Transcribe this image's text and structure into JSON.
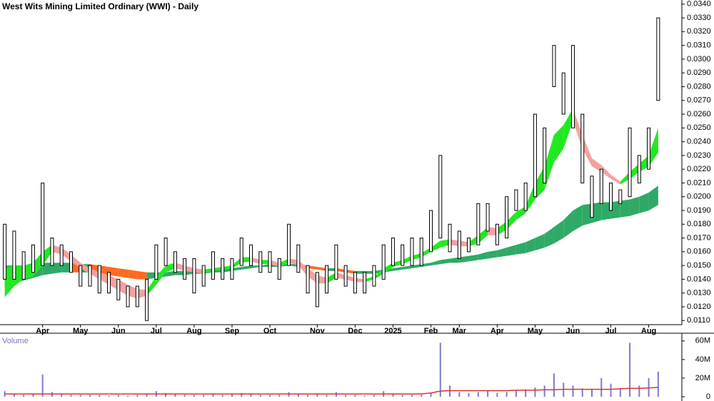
{
  "chart_data": {
    "type": "ohlc",
    "title": "West Wits Mining Limited Ordinary (WWI) - Daily",
    "categories": [
      null,
      null,
      null,
      null,
      "Apr",
      null,
      null,
      null,
      "May",
      null,
      null,
      null,
      "Jun",
      null,
      null,
      null,
      "Jul",
      null,
      null,
      null,
      "Aug",
      null,
      null,
      null,
      "Sep",
      null,
      null,
      null,
      "Oct",
      null,
      null,
      null,
      null,
      "Nov",
      null,
      null,
      null,
      "Dec",
      null,
      null,
      null,
      "2025",
      null,
      null,
      null,
      "Feb",
      null,
      null,
      "Mar",
      null,
      null,
      null,
      "Apr",
      null,
      null,
      null,
      "May",
      null,
      null,
      null,
      "Jun",
      null,
      null,
      null,
      "Jul",
      null,
      null,
      null,
      "Aug",
      null
    ],
    "high": [
      0.018,
      0.0175,
      0.016,
      0.0165,
      0.021,
      0.017,
      0.0165,
      0.016,
      0.015,
      0.015,
      0.015,
      0.0145,
      0.014,
      0.0135,
      0.0135,
      0.014,
      0.0165,
      0.017,
      0.016,
      0.0155,
      0.0155,
      0.015,
      0.016,
      0.0155,
      0.0155,
      0.017,
      0.0165,
      0.016,
      0.016,
      0.0155,
      0.018,
      0.0165,
      0.015,
      0.0145,
      0.015,
      0.0165,
      0.015,
      0.0145,
      0.0145,
      0.015,
      0.0165,
      0.017,
      0.0165,
      0.017,
      0.017,
      0.019,
      0.023,
      0.018,
      0.0175,
      0.017,
      0.0195,
      0.0195,
      0.018,
      0.02,
      0.0205,
      0.021,
      0.026,
      0.025,
      0.031,
      0.029,
      0.031,
      0.026,
      0.0215,
      0.022,
      0.021,
      0.0205,
      0.025,
      0.023,
      0.025,
      0.033
    ],
    "low": [
      0.014,
      0.014,
      0.014,
      0.0145,
      0.015,
      0.015,
      0.015,
      0.0145,
      0.0135,
      0.0135,
      0.013,
      0.013,
      0.0125,
      0.012,
      0.012,
      0.011,
      0.014,
      0.015,
      0.0145,
      0.014,
      0.013,
      0.0135,
      0.014,
      0.014,
      0.014,
      0.015,
      0.015,
      0.0145,
      0.0145,
      0.014,
      0.015,
      0.0145,
      0.013,
      0.012,
      0.013,
      0.014,
      0.0135,
      0.013,
      0.013,
      0.0135,
      0.014,
      0.015,
      0.015,
      0.015,
      0.015,
      0.016,
      0.017,
      0.016,
      0.0155,
      0.016,
      0.0165,
      0.0175,
      0.0165,
      0.017,
      0.019,
      0.019,
      0.02,
      0.021,
      0.028,
      0.026,
      0.025,
      0.021,
      0.0185,
      0.0195,
      0.019,
      0.0195,
      0.02,
      0.021,
      0.022,
      0.027
    ],
    "short_band": {
      "rising_color": "#22e822",
      "falling_color": "#f4a0a0",
      "upper": [
        0.0148,
        0.015,
        0.015,
        0.0152,
        0.016,
        0.0165,
        0.0163,
        0.0158,
        0.0152,
        0.0148,
        0.0145,
        0.0143,
        0.014,
        0.0136,
        0.0133,
        0.0132,
        0.0142,
        0.015,
        0.0152,
        0.015,
        0.0148,
        0.0147,
        0.0148,
        0.0149,
        0.015,
        0.0156,
        0.0156,
        0.0154,
        0.0154,
        0.0152,
        0.0155,
        0.0154,
        0.0148,
        0.0143,
        0.0141,
        0.0145,
        0.0143,
        0.0141,
        0.014,
        0.0142,
        0.0148,
        0.0152,
        0.0154,
        0.0157,
        0.0159,
        0.0163,
        0.0168,
        0.0169,
        0.0168,
        0.0167,
        0.0172,
        0.0178,
        0.0177,
        0.0182,
        0.0189,
        0.0193,
        0.021,
        0.0222,
        0.0245,
        0.0252,
        0.0264,
        0.0245,
        0.0228,
        0.0223,
        0.0216,
        0.0211,
        0.0218,
        0.0224,
        0.023,
        0.025
      ],
      "lower": [
        0.0127,
        0.0135,
        0.014,
        0.0142,
        0.015,
        0.016,
        0.0158,
        0.0153,
        0.0148,
        0.0144,
        0.014,
        0.0136,
        0.0132,
        0.0128,
        0.0126,
        0.0128,
        0.0136,
        0.0145,
        0.0148,
        0.0146,
        0.0145,
        0.0144,
        0.0146,
        0.0147,
        0.0148,
        0.0152,
        0.0153,
        0.0151,
        0.0151,
        0.0149,
        0.0152,
        0.015,
        0.0142,
        0.0137,
        0.0137,
        0.0141,
        0.014,
        0.0138,
        0.0138,
        0.014,
        0.0144,
        0.0149,
        0.0151,
        0.0154,
        0.0156,
        0.016,
        0.0163,
        0.0165,
        0.0164,
        0.0164,
        0.0166,
        0.0172,
        0.0172,
        0.0176,
        0.0183,
        0.0188,
        0.0198,
        0.0205,
        0.0225,
        0.0235,
        0.0255,
        0.0235,
        0.0222,
        0.0218,
        0.0213,
        0.0209,
        0.0213,
        0.0218,
        0.0222,
        0.0232
      ]
    },
    "long_band": {
      "rising_color": "#2eaa66",
      "falling_color": "#ff6a22",
      "upper": [
        0.015,
        0.015,
        0.015,
        0.0151,
        0.0152,
        0.0152,
        0.0152,
        0.0152,
        0.0151,
        0.0151,
        0.015,
        0.0149,
        0.0148,
        0.0147,
        0.0146,
        0.0145,
        0.0145,
        0.0145,
        0.0146,
        0.0146,
        0.0146,
        0.0146,
        0.0147,
        0.0147,
        0.0148,
        0.0149,
        0.015,
        0.015,
        0.0151,
        0.0151,
        0.0151,
        0.0151,
        0.015,
        0.0149,
        0.0148,
        0.0148,
        0.0147,
        0.0146,
        0.0146,
        0.0146,
        0.0147,
        0.0148,
        0.0149,
        0.015,
        0.0151,
        0.0152,
        0.0154,
        0.0155,
        0.0156,
        0.0157,
        0.0158,
        0.016,
        0.0161,
        0.0163,
        0.0165,
        0.0167,
        0.017,
        0.0173,
        0.0178,
        0.0183,
        0.019,
        0.0194,
        0.0195,
        0.0196,
        0.0196,
        0.0197,
        0.0198,
        0.02,
        0.0203,
        0.0208
      ],
      "lower": [
        0.0135,
        0.0137,
        0.0139,
        0.0141,
        0.0143,
        0.0144,
        0.0145,
        0.0145,
        0.0145,
        0.0145,
        0.0144,
        0.0143,
        0.0142,
        0.0141,
        0.014,
        0.014,
        0.0141,
        0.0142,
        0.0143,
        0.0143,
        0.0144,
        0.0144,
        0.0145,
        0.0145,
        0.0146,
        0.0147,
        0.0148,
        0.0149,
        0.0149,
        0.0149,
        0.015,
        0.0149,
        0.0148,
        0.0147,
        0.0146,
        0.0146,
        0.0145,
        0.0144,
        0.0144,
        0.0144,
        0.0145,
        0.0146,
        0.0147,
        0.0148,
        0.0149,
        0.015,
        0.0151,
        0.0152,
        0.0152,
        0.0153,
        0.0154,
        0.0155,
        0.0156,
        0.0157,
        0.0158,
        0.0159,
        0.0161,
        0.0163,
        0.0166,
        0.017,
        0.0175,
        0.0179,
        0.0181,
        0.0183,
        0.0184,
        0.0185,
        0.0186,
        0.0188,
        0.019,
        0.0194
      ]
    },
    "ylim": [
      0.0107,
      0.0343
    ],
    "yticks": [
      {
        "value": 0.011,
        "label": "0.0110"
      },
      {
        "value": 0.012,
        "label": "0.0120"
      },
      {
        "value": 0.013,
        "label": "0.0130"
      },
      {
        "value": 0.014,
        "label": "0.0140"
      },
      {
        "value": 0.015,
        "label": "0.0150"
      },
      {
        "value": 0.016,
        "label": "0.0160"
      },
      {
        "value": 0.017,
        "label": "0.0170"
      },
      {
        "value": 0.018,
        "label": "0.0180"
      },
      {
        "value": 0.019,
        "label": "0.0190"
      },
      {
        "value": 0.02,
        "label": "0.0200"
      },
      {
        "value": 0.021,
        "label": "0.0210"
      },
      {
        "value": 0.022,
        "label": "0.0220"
      },
      {
        "value": 0.023,
        "label": "0.0230"
      },
      {
        "value": 0.024,
        "label": "0.0240"
      },
      {
        "value": 0.025,
        "label": "0.0250"
      },
      {
        "value": 0.026,
        "label": "0.0260"
      },
      {
        "value": 0.027,
        "label": "0.0270"
      },
      {
        "value": 0.028,
        "label": "0.0280"
      },
      {
        "value": 0.029,
        "label": "0.0290"
      },
      {
        "value": 0.03,
        "label": "0.0300"
      },
      {
        "value": 0.031,
        "label": "0.0310"
      },
      {
        "value": 0.032,
        "label": "0.0320"
      },
      {
        "value": 0.033,
        "label": "0.0330"
      },
      {
        "value": 0.034,
        "label": "0.0340"
      }
    ],
    "volume": {
      "title": "Volume",
      "color": "#7b7bd0",
      "ma_color": "#e03030",
      "values": [
        6000000,
        3000000,
        2000000,
        3000000,
        24000000,
        5000000,
        3000000,
        2000000,
        2000000,
        2000000,
        2000000,
        1000000,
        2000000,
        1000000,
        2000000,
        3000000,
        6000000,
        4000000,
        3000000,
        2000000,
        2000000,
        2000000,
        3000000,
        2000000,
        3000000,
        4000000,
        3000000,
        2000000,
        2000000,
        2000000,
        5000000,
        3000000,
        2000000,
        3000000,
        2000000,
        5000000,
        2000000,
        2000000,
        1000000,
        2000000,
        6000000,
        3000000,
        2000000,
        2000000,
        2000000,
        4000000,
        58000000,
        12000000,
        5000000,
        4000000,
        5000000,
        6000000,
        4000000,
        5000000,
        7000000,
        8000000,
        10000000,
        12000000,
        25000000,
        15000000,
        12000000,
        9000000,
        8000000,
        20000000,
        14000000,
        8000000,
        58000000,
        12000000,
        20000000,
        27000000
      ],
      "ma": [
        3000000,
        3000000,
        3000000,
        3000000,
        3000000,
        3000000,
        3000000,
        3000000,
        3000000,
        3000000,
        3000000,
        3000000,
        3000000,
        3000000,
        3000000,
        3000000,
        3000000,
        3000000,
        3000000,
        3000000,
        3000000,
        3000000,
        3000000,
        3000000,
        3000000,
        3000000,
        3000000,
        3000000,
        3000000,
        3000000,
        3000000,
        3000000,
        3000000,
        3000000,
        3000000,
        3000000,
        3000000,
        3000000,
        3000000,
        3000000,
        3000000,
        3000000,
        3000000,
        3000000,
        3000000,
        4000000,
        6000000,
        6500000,
        6500000,
        6500000,
        6500000,
        6500000,
        6500000,
        6500000,
        7000000,
        7000000,
        7000000,
        7500000,
        7500000,
        8000000,
        8000000,
        8000000,
        8000000,
        8000000,
        8000000,
        8500000,
        9000000,
        9000000,
        9500000,
        10000000
      ],
      "ylim": [
        0,
        66000000
      ],
      "yticks": [
        {
          "value": 0,
          "label": "0"
        },
        {
          "value": 20000000,
          "label": "20M"
        },
        {
          "value": 40000000,
          "label": "40M"
        },
        {
          "value": 60000000,
          "label": "60M"
        }
      ]
    }
  }
}
